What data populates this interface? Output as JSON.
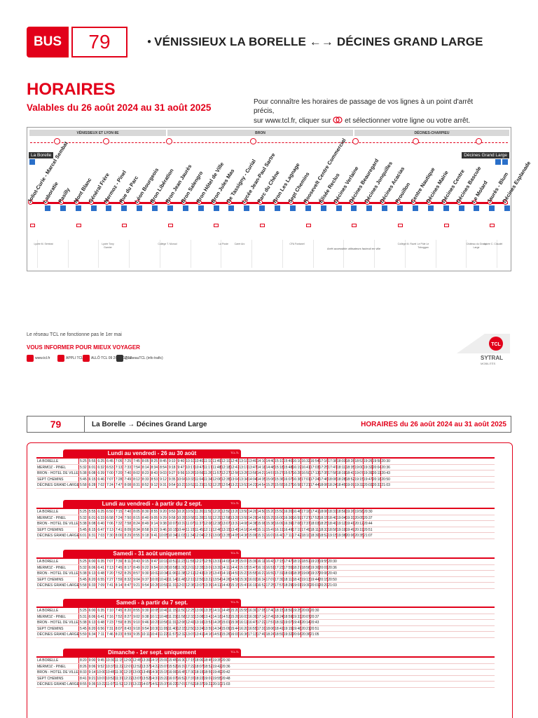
{
  "header": {
    "bus_label": "BUS",
    "line_number": "79",
    "route": "VÉNISSIEUX LA BORELLE ←→ DÉCINES GRAND LARGE",
    "horaires": "HORAIRES",
    "valables": "Valables du 26 août 2024 au 31 août 2025",
    "info_line1": "Pour connaître les horaires de passage de vos lignes à un point d'arrêt précis,",
    "info_line2": "sur www.tcl.fr, cliquer sur",
    "info_line2b": "et sélectionner votre ligne ou votre arrêt."
  },
  "map": {
    "zones": [
      "VÉNISSIEUX ET LYON 8E",
      "BRON",
      "DÉCINES-CHARPIEU"
    ],
    "start_label": "La Borelle",
    "end_label": "Décines Grand Large",
    "stops": [
      "Joliot-Curie - Marcel Sembat",
      "Laboratie",
      "Pasilly",
      "Mont Blanc",
      "Général Frère",
      "Mermoz - Pinel",
      "Rue du Parc",
      "Léon Bourgeois",
      "Bron Libération",
      "Bron Jean Jaurès",
      "Bron Salengro",
      "Bron Hôtel de Ville",
      "Bron Jules Mas",
      "De Tassigny - Curial",
      "Lycée Jean-Paul Sartre",
      "Parc du Chêne",
      "Bron Les Lagnage",
      "Sept Chemins",
      "Roosevelt Centre Commercial",
      "Élisée Reclus",
      "Décines Verlaine",
      "Décines Beauregard",
      "Décines Jonquilles",
      "Décines Acacias",
      "Prouillon",
      "Centre Nautique",
      "Décines Mairie",
      "Décines Centre",
      "Décines Bascule",
      "Le Molard",
      "Jaurès - Blum",
      "Décines Esplanade"
    ],
    "notes": [
      "Lycée M. Sembat",
      "Lycée Tony Garnier",
      "Collège T. Monod",
      "La Poste",
      "Carré Arc",
      "CFA Fontanel",
      "Collège M. Ravel",
      "Le Pôle Le Toboggan",
      "Château du Grand Large",
      "Lycée C. Claudel"
    ],
    "legend_note": "Arrêt accessible utilisateurs fauteuil en ville"
  },
  "footer": {
    "tcl_note": "Le réseau TCL ne fonctionne pas le 1er mai",
    "vous_info": "VOUS INFORMER POUR MIEUX VOYAGER",
    "contacts": [
      "www.tcl.fr",
      "APPLI TCL",
      "ALLÔ TCL 09 26 10 12 12",
      "@reseauTCL (info trafic)"
    ],
    "sytral_name": "SYTRAL",
    "sytral_sub": "MOBILITÉS"
  },
  "timetable": {
    "line": "79",
    "route": "La Borelle → Décines Grand Large",
    "dates": "HORAIRES du 26 août 2024 au 31 août 2025",
    "tag": "TCL-TL",
    "stops": [
      "LA BORELLE",
      "MERMOZ - PINEL",
      "BRON - HOTEL DE VILLE",
      "SEPT CHEMINS",
      "DÉCINES GRAND LARGE"
    ],
    "schedules": [
      {
        "title": "Lundi au vendredi - 26 au 30 août",
        "rows": [
          [
            "5:25",
            "5:55",
            "6:25",
            "6:45",
            "7:05",
            "7:25",
            "7:45",
            "8:05",
            "8:25",
            "8:45",
            "9:10",
            "9:40",
            "10:10",
            "10:40",
            "11:10",
            "11:40",
            "12:10",
            "12:40",
            "13:10",
            "13:40",
            "14:10",
            "14:40",
            "15:10",
            "15:40",
            "16:10",
            "16:32",
            "16:54",
            "17:16",
            "17:38",
            "18:03",
            "18:28",
            "18:53",
            "19:26",
            "19:58",
            "20:30"
          ],
          [
            "5:32",
            "6:01",
            "6:32",
            "6:53",
            "7:13",
            "7:33",
            "7:54",
            "8:14",
            "8:34",
            "8:54",
            "9:18",
            "9:47",
            "10:17",
            "10:47",
            "11:17",
            "11:48",
            "12:18",
            "12:47",
            "13:17",
            "13:47",
            "14:18",
            "14:48",
            "15:18",
            "15:48",
            "16:19",
            "16:41",
            "17:03",
            "17:25",
            "17:47",
            "18:11",
            "18:35",
            "19:00",
            "19:32",
            "20:04",
            "20:36"
          ],
          [
            "5:38",
            "6:08",
            "6:39",
            "7:00",
            "7:20",
            "7:40",
            "8:02",
            "8:23",
            "8:43",
            "9:03",
            "9:27",
            "9:56",
            "10:26",
            "10:56",
            "11:26",
            "11:57",
            "12:27",
            "12:56",
            "13:26",
            "13:56",
            "14:27",
            "14:57",
            "15:27",
            "15:57",
            "16:28",
            "16:50",
            "17:13",
            "17:35",
            "17:56",
            "18:19",
            "18:43",
            "19:07",
            "19:39",
            "20:11",
            "20:43"
          ],
          [
            "5:45",
            "6:15",
            "6:46",
            "7:07",
            "7:28",
            "7:49",
            "8:12",
            "8:33",
            "8:53",
            "9:12",
            "9:35",
            "10:04",
            "10:33",
            "11:04",
            "11:34",
            "12:06",
            "12:35",
            "13:04",
            "13:34",
            "14:04",
            "14:35",
            "15:06",
            "15:36",
            "16:07",
            "16:38",
            "17:01",
            "17:24",
            "17:46",
            "18:06",
            "18:28",
            "18:52",
            "19:15",
            "19:47",
            "20:18",
            "20:50"
          ],
          [
            "5:58",
            "6:28",
            "7:02",
            "7:24",
            "7:47",
            "8:08",
            "8:31",
            "8:52",
            "9:12",
            "9:31",
            "9:54",
            "10:23",
            "10:52",
            "11:23",
            "11:53",
            "12:25",
            "12:54",
            "13:23",
            "13:53",
            "14:23",
            "14:54",
            "15:25",
            "15:55",
            "16:27",
            "16:58",
            "17:21",
            "17:44",
            "18:06",
            "18:24",
            "18:45",
            "19:09",
            "19:32",
            "20:03",
            "20:33",
            "21:03"
          ]
        ]
      },
      {
        "title": "Lundi au vendredi - à partir du 2 sept.",
        "rows": [
          [
            "5:25",
            "5:55",
            "6:25",
            "6:50",
            "7:15",
            "7:40",
            "8:05",
            "8:30",
            "8:55",
            "9:20",
            "9:50",
            "10:20",
            "10:50",
            "11:20",
            "11:50",
            "12:20",
            "12:50",
            "13:20",
            "13:50",
            "14:20",
            "14:50",
            "15:20",
            "15:50",
            "16:20",
            "16:48",
            "17:16",
            "17:41",
            "18:06",
            "18:31",
            "18:56",
            "19:26",
            "19:58",
            "20:30"
          ],
          [
            "5:32",
            "6:01",
            "6:33",
            "6:58",
            "7:24",
            "7:50",
            "8:15",
            "8:40",
            "9:05",
            "9:29",
            "9:58",
            "10:28",
            "10:58",
            "11:28",
            "11:59",
            "12:29",
            "12:58",
            "13:28",
            "13:59",
            "14:29",
            "14:59",
            "15:29",
            "16:00",
            "16:30",
            "16:59",
            "17:27",
            "17:52",
            "18:15",
            "18:40",
            "19:04",
            "19:33",
            "20:05",
            "20:37"
          ],
          [
            "5:38",
            "6:08",
            "6:40",
            "7:06",
            "7:32",
            "7:58",
            "8:24",
            "8:49",
            "9:14",
            "9:38",
            "10:07",
            "10:37",
            "11:07",
            "11:37",
            "12:08",
            "12:38",
            "13:07",
            "13:37",
            "14:08",
            "14:38",
            "15:08",
            "15:38",
            "16:09",
            "16:39",
            "17:08",
            "17:37",
            "18:03",
            "18:25",
            "18:49",
            "19:12",
            "19:41",
            "20:12",
            "20:44"
          ],
          [
            "5:45",
            "6:15",
            "6:47",
            "7:13",
            "7:41",
            "8:09",
            "8:34",
            "8:58",
            "9:22",
            "9:46",
            "10:15",
            "10:44",
            "11:15",
            "11:45",
            "12:17",
            "12:46",
            "13:15",
            "13:45",
            "14:16",
            "14:46",
            "15:17",
            "15:47",
            "16:19",
            "16:49",
            "17:19",
            "17:49",
            "18:11",
            "18:33",
            "18:56",
            "19:19",
            "19:49",
            "20:19",
            "20:51"
          ],
          [
            "6:01",
            "6:31",
            "7:03",
            "7:30",
            "8:00",
            "8:29",
            "8:55",
            "9:18",
            "9:41",
            "10:05",
            "10:34",
            "11:03",
            "11:34",
            "12:04",
            "12:37",
            "13:06",
            "13:35",
            "14:05",
            "14:36",
            "15:06",
            "15:37",
            "16:07",
            "16:40",
            "17:11",
            "17:42",
            "18:10",
            "18:30",
            "18:52",
            "19:15",
            "19:38",
            "20:06",
            "20:35",
            "21:07"
          ]
        ]
      },
      {
        "title": "Samedi - 31 août uniquement",
        "rows": [
          [
            "5:25",
            "6:00",
            "6:35",
            "7:07",
            "7:39",
            "8:11",
            "8:43",
            "9:15",
            "9:47",
            "10:19",
            "10:51",
            "11:23",
            "11:55",
            "12:27",
            "12:59",
            "13:31",
            "14:03",
            "14:35",
            "15:07",
            "15:39",
            "16:11",
            "16:43",
            "17:15",
            "17:47",
            "18:19",
            "18:51",
            "19:23",
            "19:55",
            "20:30"
          ],
          [
            "5:32",
            "6:06",
            "6:41",
            "7:13",
            "7:45",
            "8:17",
            "8:49",
            "9:22",
            "9:54",
            "10:26",
            "10:58",
            "11:30",
            "12:02",
            "12:35",
            "13:07",
            "13:39",
            "14:11",
            "14:43",
            "15:15",
            "15:47",
            "16:19",
            "16:51",
            "17:23",
            "17:55",
            "18:27",
            "18:58",
            "19:30",
            "20:01",
            "20:36"
          ],
          [
            "5:38",
            "6:13",
            "6:48",
            "7:20",
            "7:52",
            "8:25",
            "8:57",
            "9:30",
            "10:02",
            "10:34",
            "11:06",
            "11:38",
            "12:11",
            "12:43",
            "13:15",
            "13:47",
            "14:19",
            "14:51",
            "15:23",
            "15:55",
            "16:27",
            "16:59",
            "17:31",
            "18:03",
            "18:35",
            "19:06",
            "19:37",
            "20:08",
            "20:43"
          ],
          [
            "5:45",
            "6:20",
            "6:55",
            "7:27",
            "7:59",
            "8:32",
            "9:04",
            "9:37",
            "10:09",
            "10:42",
            "11:14",
            "11:46",
            "12:19",
            "12:50",
            "13:22",
            "13:54",
            "14:26",
            "14:58",
            "15:30",
            "16:02",
            "16:34",
            "17:07",
            "17:39",
            "18:11",
            "18:43",
            "19:13",
            "19:44",
            "20:15",
            "20:50"
          ],
          [
            "5:58",
            "6:33",
            "7:09",
            "7:41",
            "8:14",
            "8:47",
            "9:21",
            "9:54",
            "10:26",
            "10:59",
            "11:31",
            "12:03",
            "12:36",
            "13:07",
            "13:39",
            "14:11",
            "14:43",
            "15:15",
            "15:47",
            "16:19",
            "16:52",
            "17:25",
            "17:57",
            "18:29",
            "19:01",
            "19:30",
            "20:01",
            "20:29",
            "21:03"
          ]
        ]
      },
      {
        "title": "Samedi - à partir du 7 sept.",
        "rows": [
          [
            "5:25",
            "6:00",
            "6:35",
            "7:10",
            "7:45",
            "8:20",
            "8:55",
            "9:30",
            "10:05",
            "10:40",
            "11:15",
            "11:50",
            "12:25",
            "13:00",
            "13:35",
            "14:10",
            "14:45",
            "15:20",
            "15:55",
            "16:30",
            "17:05",
            "17:40",
            "18:15",
            "18:50",
            "19:25",
            "20:00",
            "20:30"
          ],
          [
            "5:31",
            "6:06",
            "6:41",
            "7:16",
            "7:52",
            "8:27",
            "9:02",
            "9:38",
            "10:13",
            "10:48",
            "11:23",
            "11:58",
            "12:33",
            "13:08",
            "13:43",
            "14:18",
            "14:53",
            "15:28",
            "16:03",
            "16:39",
            "17:14",
            "17:49",
            "18:24",
            "18:59",
            "19:33",
            "20:07",
            "20:37"
          ],
          [
            "5:38",
            "6:13",
            "6:48",
            "7:23",
            "7:59",
            "8:35",
            "9:10",
            "9:46",
            "10:21",
            "10:56",
            "11:31",
            "12:06",
            "12:41",
            "13:16",
            "13:51",
            "14:26",
            "15:01",
            "15:36",
            "16:11",
            "16:47",
            "17:22",
            "17:57",
            "18:32",
            "19:07",
            "19:41",
            "20:14",
            "20:43"
          ],
          [
            "5:45",
            "6:20",
            "6:56",
            "7:31",
            "8:07",
            "8:43",
            "9:18",
            "9:54",
            "10:30",
            "11:05",
            "11:40",
            "12:15",
            "12:50",
            "13:24",
            "13:59",
            "14:34",
            "15:09",
            "15:44",
            "16:20",
            "16:55",
            "17:31",
            "18:06",
            "18:41",
            "19:15",
            "19:48",
            "20:21",
            "20:51"
          ],
          [
            "5:59",
            "6:34",
            "7:11",
            "7:46",
            "8:23",
            "8:59",
            "9:35",
            "10:11",
            "10:47",
            "11:22",
            "11:57",
            "12:32",
            "13:07",
            "13:41",
            "14:16",
            "14:51",
            "15:26",
            "16:01",
            "16:36",
            "17:13",
            "17:49",
            "18:24",
            "18:59",
            "19:32",
            "20:04",
            "20:36",
            "21:05"
          ]
        ]
      },
      {
        "title": "Dimanche - 1er sept. uniquement",
        "rows": [
          [
            "8:20",
            "9:00",
            "9:45",
            "10:30",
            "11:15",
            "12:00",
            "12:45",
            "13:30",
            "14:15",
            "15:00",
            "15:45",
            "16:30",
            "17:15",
            "18:00",
            "18:45",
            "19:35",
            "20:30"
          ],
          [
            "8:26",
            "9:06",
            "9:52",
            "10:37",
            "11:22",
            "12:07",
            "12:52",
            "13:37",
            "14:22",
            "15:07",
            "15:52",
            "16:37",
            "17:22",
            "18:07",
            "18:52",
            "19:42",
            "20:36"
          ],
          [
            "8:33",
            "9:14",
            "10:00",
            "10:45",
            "11:30",
            "12:15",
            "13:00",
            "13:45",
            "14:30",
            "15:15",
            "16:00",
            "16:45",
            "17:30",
            "18:15",
            "18:59",
            "19:49",
            "20:42"
          ],
          [
            "8:41",
            "9:21",
            "10:07",
            "10:52",
            "11:37",
            "12:22",
            "13:07",
            "13:52",
            "14:37",
            "15:22",
            "16:07",
            "16:52",
            "17:37",
            "18:22",
            "19:07",
            "19:55",
            "20:48"
          ],
          [
            "8:55",
            "9:36",
            "10:22",
            "11:07",
            "11:52",
            "12:37",
            "13:22",
            "14:07",
            "14:52",
            "15:37",
            "16:22",
            "17:07",
            "17:52",
            "18:37",
            "19:22",
            "20:10",
            "21:03"
          ]
        ]
      }
    ]
  },
  "colors": {
    "accent": "#e2001a",
    "access": "#2a6fc9"
  },
  "icons": [
    "bus-icon",
    "wheelchair-icon",
    "clock-icon",
    "locate-icon",
    "sytral-logo-icon"
  ]
}
